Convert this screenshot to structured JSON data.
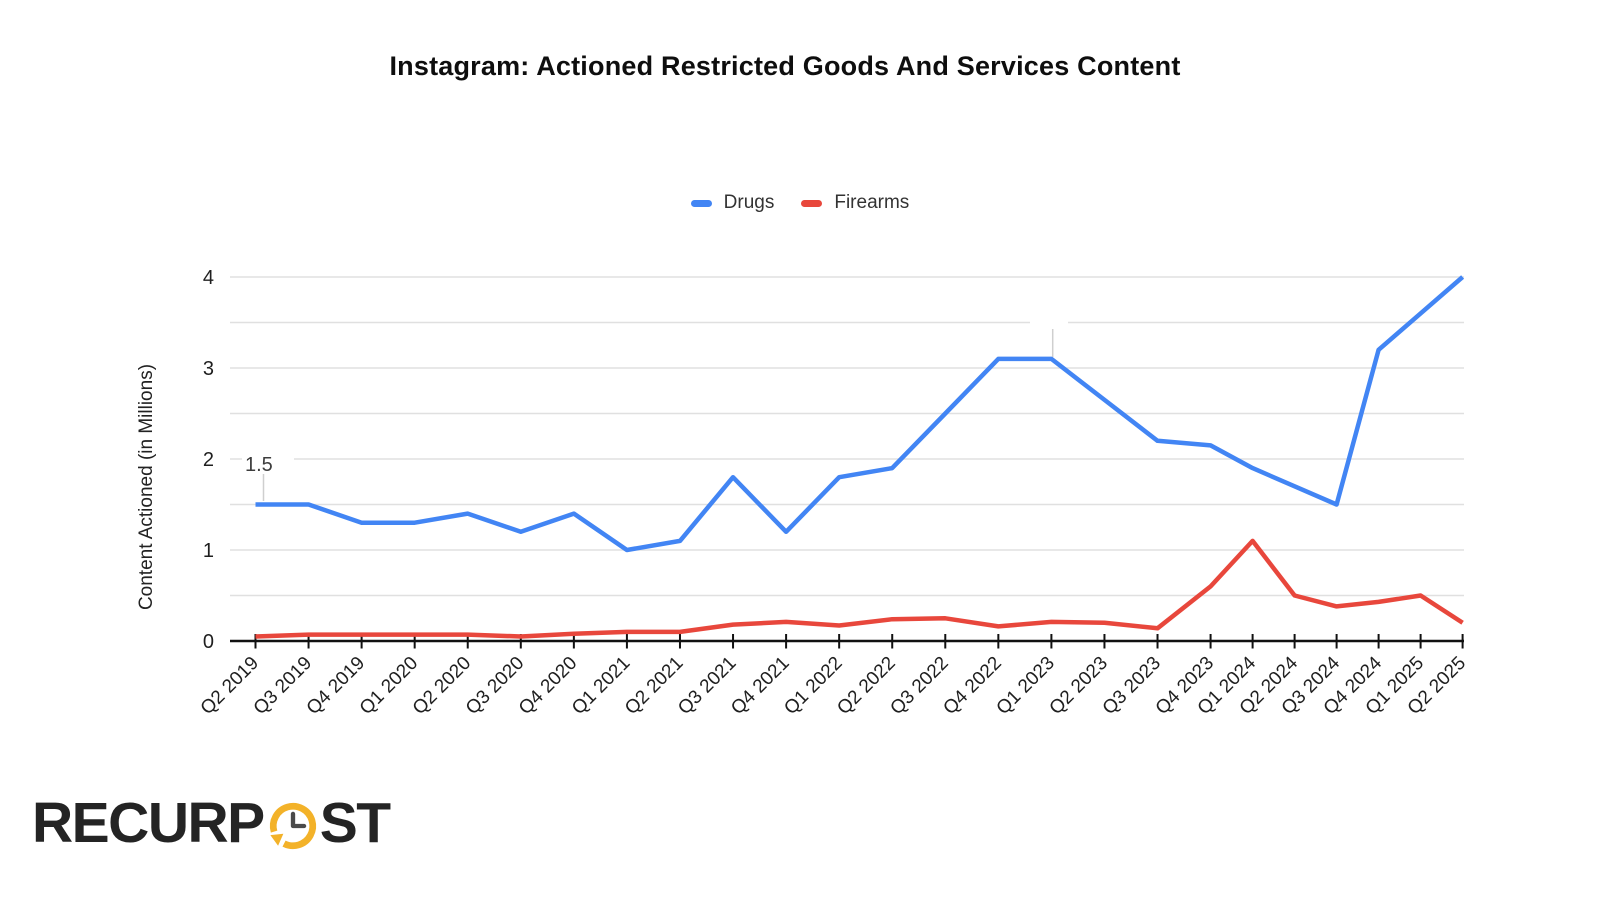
{
  "page": {
    "background": "#ffffff"
  },
  "chart_data": {
    "type": "line",
    "title": "Instagram: Actioned Restricted Goods And Services Content",
    "xlabel": "",
    "ylabel": "Content Actioned (in Millions)",
    "ylim": [
      0,
      4
    ],
    "y_tick_labels": [
      "0",
      "1",
      "2",
      "3",
      "4"
    ],
    "gridline_step": 0.5,
    "grid": true,
    "legend_position": "top",
    "categories": [
      "Q2 2019",
      "Q3 2019",
      "Q4 2019",
      "Q1 2020",
      "Q2 2020",
      "Q3 2020",
      "Q4 2020",
      "Q1 2021",
      "Q2 2021",
      "Q3 2021",
      "Q4 2021",
      "Q1 2022",
      "Q2 2022",
      "Q3 2022",
      "Q4 2022",
      "Q1 2023",
      "Q2 2023",
      "Q3 2023",
      "Q4 2023",
      "Q1 2024",
      "Q2 2024",
      "Q3 2024",
      "Q4 2024",
      "Q1 2025",
      "Q2 2025"
    ],
    "series": [
      {
        "name": "Drugs",
        "color": "#4285f4",
        "values": [
          1.5,
          1.5,
          1.3,
          1.3,
          1.4,
          1.2,
          1.4,
          1.0,
          1.1,
          1.8,
          1.2,
          1.8,
          1.9,
          2.5,
          3.1,
          3.1,
          2.65,
          2.2,
          2.15,
          1.9,
          1.7,
          1.5,
          3.2,
          3.6,
          4.0
        ]
      },
      {
        "name": "Firearms",
        "color": "#e8473c",
        "values": [
          0.05,
          0.07,
          0.07,
          0.07,
          0.07,
          0.05,
          0.08,
          0.1,
          0.1,
          0.18,
          0.21,
          0.17,
          0.24,
          0.25,
          0.16,
          0.21,
          0.2,
          0.14,
          0.6,
          1.1,
          0.5,
          0.38,
          0.43,
          0.5,
          0.2
        ]
      }
    ],
    "annotations": [
      {
        "type": "hover-tooltip",
        "category": "Q2 2019",
        "series": "Drugs",
        "label": "1.5"
      },
      {
        "type": "hover-crosshair",
        "category": "Q1 2023",
        "series": "Drugs",
        "label": ""
      }
    ]
  },
  "logo": {
    "text_left": "RECURP",
    "text_right": "ST",
    "icon": "clock-icon",
    "text_color": "#242424",
    "accent_color": "#f3b229"
  }
}
